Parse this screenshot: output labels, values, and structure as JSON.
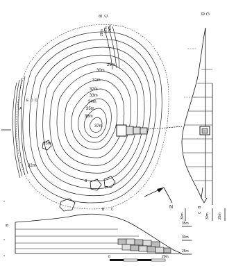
{
  "plan": {
    "contour_labels": [
      "29m",
      "30m",
      "31m",
      "32m",
      "33m",
      "34m",
      "35m",
      "36m",
      "37m",
      "33m",
      "32m"
    ],
    "section_markers_top": [
      "B",
      "C"
    ],
    "section_markers_left": [
      "B",
      "C"
    ],
    "north_label": "N",
    "wall_marks": [
      "E",
      "D",
      "C",
      "A",
      "B",
      "F"
    ]
  },
  "elevation_labels_top": [
    "28m",
    "27m",
    "26m"
  ],
  "section_right": {
    "markers": [
      "B",
      "C"
    ],
    "bottom_markers": [
      "B",
      "C"
    ],
    "elevations": [
      "30m",
      "25m"
    ],
    "top_elevation": "30m"
  },
  "section_bottom": {
    "elevations": [
      "35m",
      "30m",
      "25m"
    ],
    "top_elevation": "35m",
    "bottom_marker": "B"
  },
  "scale_bar": {
    "start": "0",
    "end": "20m"
  }
}
